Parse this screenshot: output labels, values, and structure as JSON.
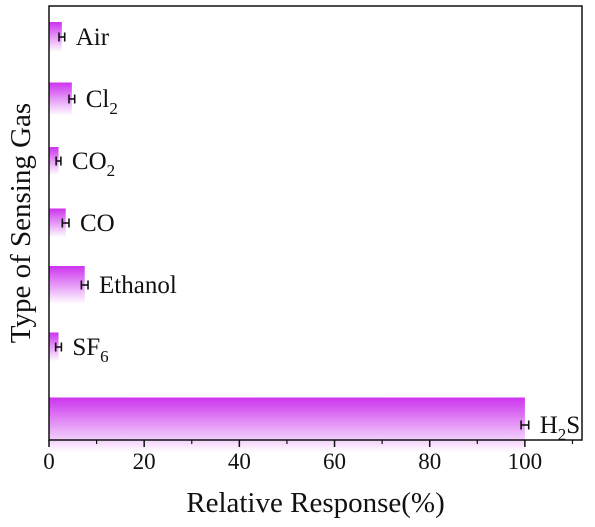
{
  "chart_data": {
    "type": "bar",
    "orientation": "horizontal",
    "title": "",
    "xlabel": "Relative Response(%)",
    "ylabel": "Type of Sensing Gas",
    "xlim": [
      0,
      112
    ],
    "xticks": [
      0,
      20,
      40,
      60,
      80,
      100
    ],
    "grid": false,
    "legend": "none",
    "bar_color_start": "#cc33ee",
    "bar_color_end": "#ffffff",
    "categories": [
      {
        "label": "Air",
        "sub": "",
        "after": "",
        "value": 2.7,
        "error": 0.6
      },
      {
        "label": "Cl",
        "sub": "2",
        "after": "",
        "value": 4.8,
        "error": 0.6
      },
      {
        "label": "CO",
        "sub": "2",
        "after": "",
        "value": 2.0,
        "error": 0.5
      },
      {
        "label": "CO",
        "sub": "",
        "after": "",
        "value": 3.5,
        "error": 0.7
      },
      {
        "label": "Ethanol",
        "sub": "",
        "after": "",
        "value": 7.5,
        "error": 0.7
      },
      {
        "label": "SF",
        "sub": "6",
        "after": "",
        "value": 2.0,
        "error": 0.6
      },
      {
        "label": "H",
        "sub": "2",
        "after": "S",
        "value": 100,
        "error": 0.8
      }
    ]
  }
}
